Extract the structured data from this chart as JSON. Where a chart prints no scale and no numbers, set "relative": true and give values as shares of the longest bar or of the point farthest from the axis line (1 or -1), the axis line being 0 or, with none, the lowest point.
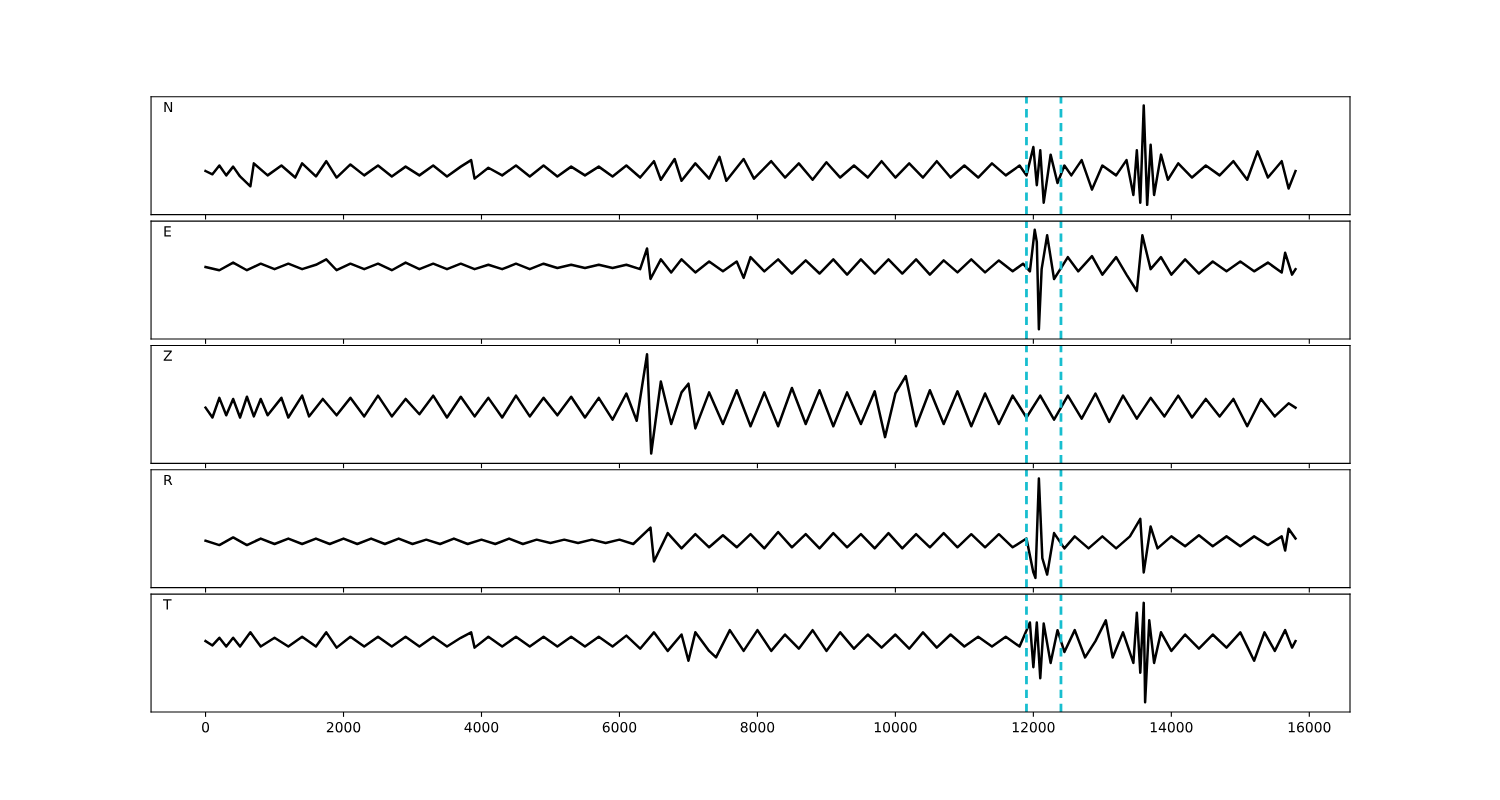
{
  "chart_data": [
    {
      "type": "line",
      "relative": true,
      "xlim": [
        -790,
        16590
      ],
      "xticks": [
        0,
        2000,
        4000,
        6000,
        8000,
        10000,
        12000,
        14000,
        16000
      ],
      "tick_labels": false,
      "grid": false,
      "annotations": [
        "N"
      ],
      "ref_lines": [
        {
          "axis": "x",
          "value": 11900,
          "color": "#17becf",
          "line_style": "dashed"
        },
        {
          "axis": "x",
          "value": 12400,
          "color": "#17becf",
          "line_style": "dashed"
        }
      ],
      "series": [
        {
          "color": "#000000",
          "x": [
            0,
            100,
            200,
            300,
            400,
            500,
            650,
            700,
            900,
            1100,
            1300,
            1400,
            1600,
            1750,
            1900,
            2100,
            2300,
            2500,
            2700,
            2900,
            3100,
            3300,
            3500,
            3700,
            3850,
            3900,
            4100,
            4300,
            4500,
            4700,
            4900,
            5100,
            5300,
            5500,
            5700,
            5900,
            6100,
            6300,
            6500,
            6600,
            6800,
            6900,
            7100,
            7300,
            7450,
            7550,
            7800,
            7950,
            8200,
            8400,
            8600,
            8800,
            9000,
            9200,
            9400,
            9600,
            9800,
            10000,
            10200,
            10400,
            10600,
            10800,
            11000,
            11200,
            11400,
            11600,
            11800,
            11900,
            12000,
            12050,
            12100,
            12150,
            12250,
            12350,
            12450,
            12550,
            12700,
            12850,
            13000,
            13200,
            13350,
            13450,
            13500,
            13550,
            13600,
            13650,
            13700,
            13750,
            13850,
            13950,
            14100,
            14300,
            14500,
            14700,
            14900,
            15100,
            15250,
            15400,
            15600,
            15700,
            15800
          ],
          "values": [
            0.4,
            0.37,
            0.45,
            0.36,
            0.44,
            0.35,
            0.26,
            0.47,
            0.36,
            0.45,
            0.34,
            0.47,
            0.35,
            0.49,
            0.34,
            0.46,
            0.36,
            0.45,
            0.35,
            0.44,
            0.36,
            0.45,
            0.35,
            0.44,
            0.5,
            0.33,
            0.43,
            0.36,
            0.45,
            0.35,
            0.45,
            0.35,
            0.44,
            0.36,
            0.44,
            0.35,
            0.45,
            0.34,
            0.49,
            0.32,
            0.51,
            0.31,
            0.47,
            0.33,
            0.53,
            0.31,
            0.51,
            0.33,
            0.49,
            0.34,
            0.47,
            0.32,
            0.48,
            0.34,
            0.45,
            0.34,
            0.49,
            0.34,
            0.47,
            0.34,
            0.49,
            0.34,
            0.45,
            0.34,
            0.47,
            0.36,
            0.45,
            0.36,
            0.62,
            0.27,
            0.59,
            0.11,
            0.55,
            0.29,
            0.45,
            0.36,
            0.5,
            0.23,
            0.45,
            0.36,
            0.5,
            0.18,
            0.59,
            0.11,
            1.0,
            0.09,
            0.64,
            0.18,
            0.55,
            0.32,
            0.47,
            0.34,
            0.45,
            0.36,
            0.49,
            0.32,
            0.58,
            0.34,
            0.49,
            0.24,
            0.4
          ]
        }
      ]
    },
    {
      "type": "line",
      "relative": true,
      "xlim": [
        -790,
        16590
      ],
      "xticks": [
        0,
        2000,
        4000,
        6000,
        8000,
        10000,
        12000,
        14000,
        16000
      ],
      "tick_labels": false,
      "grid": false,
      "annotations": [
        "E"
      ],
      "ref_lines": [
        {
          "axis": "x",
          "value": 11900,
          "color": "#17becf",
          "line_style": "dashed"
        },
        {
          "axis": "x",
          "value": 12400,
          "color": "#17becf",
          "line_style": "dashed"
        }
      ],
      "series": [
        {
          "color": "#000000",
          "x": [
            0,
            200,
            400,
            600,
            800,
            1000,
            1200,
            1400,
            1600,
            1750,
            1900,
            2100,
            2300,
            2500,
            2700,
            2900,
            3100,
            3300,
            3500,
            3700,
            3900,
            4100,
            4300,
            4500,
            4700,
            4900,
            5100,
            5300,
            5500,
            5700,
            5900,
            6100,
            6300,
            6400,
            6450,
            6600,
            6750,
            6900,
            7100,
            7300,
            7500,
            7700,
            7800,
            7900,
            8100,
            8300,
            8500,
            8700,
            8900,
            9100,
            9300,
            9500,
            9700,
            9900,
            10100,
            10300,
            10500,
            10700,
            10900,
            11100,
            11300,
            11500,
            11700,
            11850,
            11950,
            12020,
            12050,
            12080,
            12120,
            12200,
            12300,
            12400,
            12500,
            12650,
            12850,
            13000,
            13200,
            13350,
            13500,
            13580,
            13700,
            13850,
            14000,
            14200,
            14400,
            14600,
            14800,
            15000,
            15200,
            15400,
            15600,
            15650,
            15750,
            15800
          ],
          "values": [
            0.66,
            0.63,
            0.7,
            0.63,
            0.69,
            0.64,
            0.69,
            0.64,
            0.68,
            0.73,
            0.63,
            0.69,
            0.64,
            0.69,
            0.63,
            0.7,
            0.64,
            0.69,
            0.64,
            0.69,
            0.64,
            0.68,
            0.64,
            0.69,
            0.64,
            0.69,
            0.65,
            0.68,
            0.65,
            0.68,
            0.65,
            0.68,
            0.64,
            0.83,
            0.55,
            0.73,
            0.61,
            0.73,
            0.61,
            0.71,
            0.62,
            0.71,
            0.56,
            0.75,
            0.62,
            0.73,
            0.6,
            0.72,
            0.6,
            0.73,
            0.59,
            0.73,
            0.6,
            0.73,
            0.6,
            0.73,
            0.59,
            0.72,
            0.61,
            0.73,
            0.61,
            0.72,
            0.62,
            0.69,
            0.62,
            1.0,
            0.89,
            0.09,
            0.64,
            0.95,
            0.55,
            0.65,
            0.75,
            0.62,
            0.76,
            0.59,
            0.75,
            0.59,
            0.44,
            0.95,
            0.64,
            0.75,
            0.59,
            0.73,
            0.6,
            0.71,
            0.62,
            0.71,
            0.62,
            0.7,
            0.61,
            0.79,
            0.59,
            0.64
          ]
        }
      ]
    },
    {
      "type": "line",
      "relative": true,
      "xlim": [
        -790,
        16590
      ],
      "xticks": [
        0,
        2000,
        4000,
        6000,
        8000,
        10000,
        12000,
        14000,
        16000
      ],
      "tick_labels": false,
      "grid": false,
      "annotations": [
        "Z"
      ],
      "ref_lines": [
        {
          "axis": "x",
          "value": 11900,
          "color": "#17becf",
          "line_style": "dashed"
        },
        {
          "axis": "x",
          "value": 12400,
          "color": "#17becf",
          "line_style": "dashed"
        }
      ],
      "series": [
        {
          "color": "#000000",
          "x": [
            0,
            100,
            200,
            300,
            400,
            500,
            600,
            700,
            800,
            900,
            1100,
            1200,
            1400,
            1500,
            1700,
            1900,
            2100,
            2300,
            2500,
            2700,
            2900,
            3100,
            3300,
            3500,
            3700,
            3900,
            4100,
            4300,
            4500,
            4700,
            4900,
            5100,
            5300,
            5500,
            5700,
            5900,
            6100,
            6250,
            6400,
            6460,
            6600,
            6750,
            6900,
            7000,
            7100,
            7300,
            7500,
            7700,
            7900,
            8100,
            8300,
            8500,
            8700,
            8900,
            9100,
            9300,
            9500,
            9700,
            9850,
            10000,
            10150,
            10300,
            10500,
            10700,
            10900,
            11100,
            11300,
            11500,
            11700,
            11900,
            12100,
            12300,
            12500,
            12700,
            12900,
            13100,
            13300,
            13500,
            13700,
            13900,
            14100,
            14300,
            14500,
            14700,
            14900,
            15100,
            15300,
            15500,
            15700,
            15800
          ],
          "values": [
            0.51,
            0.42,
            0.6,
            0.44,
            0.59,
            0.42,
            0.61,
            0.43,
            0.59,
            0.44,
            0.6,
            0.42,
            0.62,
            0.43,
            0.59,
            0.44,
            0.6,
            0.43,
            0.62,
            0.43,
            0.59,
            0.45,
            0.62,
            0.42,
            0.61,
            0.43,
            0.6,
            0.42,
            0.62,
            0.43,
            0.6,
            0.44,
            0.61,
            0.42,
            0.6,
            0.4,
            0.64,
            0.39,
            1.0,
            0.09,
            0.75,
            0.36,
            0.65,
            0.73,
            0.32,
            0.65,
            0.36,
            0.67,
            0.34,
            0.65,
            0.34,
            0.69,
            0.36,
            0.67,
            0.34,
            0.65,
            0.36,
            0.66,
            0.24,
            0.64,
            0.8,
            0.34,
            0.67,
            0.36,
            0.66,
            0.34,
            0.64,
            0.36,
            0.62,
            0.42,
            0.62,
            0.4,
            0.62,
            0.41,
            0.64,
            0.38,
            0.62,
            0.41,
            0.6,
            0.43,
            0.62,
            0.42,
            0.59,
            0.43,
            0.59,
            0.34,
            0.59,
            0.43,
            0.55,
            0.51
          ]
        }
      ]
    },
    {
      "type": "line",
      "relative": true,
      "xlim": [
        -790,
        16590
      ],
      "xticks": [
        0,
        2000,
        4000,
        6000,
        8000,
        10000,
        12000,
        14000,
        16000
      ],
      "tick_labels": false,
      "grid": false,
      "annotations": [
        "R"
      ],
      "ref_lines": [
        {
          "axis": "x",
          "value": 11900,
          "color": "#17becf",
          "line_style": "dashed"
        },
        {
          "axis": "x",
          "value": 12400,
          "color": "#17becf",
          "line_style": "dashed"
        }
      ],
      "series": [
        {
          "color": "#000000",
          "x": [
            0,
            200,
            400,
            600,
            800,
            1000,
            1200,
            1400,
            1600,
            1800,
            2000,
            2200,
            2400,
            2600,
            2800,
            3000,
            3200,
            3400,
            3600,
            3800,
            4000,
            4200,
            4400,
            4600,
            4800,
            5000,
            5200,
            5400,
            5600,
            5800,
            6000,
            6200,
            6450,
            6500,
            6700,
            6900,
            7100,
            7300,
            7500,
            7700,
            7900,
            8100,
            8300,
            8500,
            8700,
            8900,
            9100,
            9300,
            9500,
            9700,
            9900,
            10100,
            10300,
            10500,
            10700,
            10900,
            11100,
            11300,
            11500,
            11700,
            11900,
            12000,
            12030,
            12080,
            12130,
            12200,
            12300,
            12450,
            12600,
            12800,
            13000,
            13200,
            13400,
            13550,
            13600,
            13700,
            13800,
            14000,
            14200,
            14400,
            14600,
            14800,
            15000,
            15200,
            15400,
            15600,
            15650,
            15700,
            15800
          ],
          "values": [
            0.43,
            0.39,
            0.46,
            0.39,
            0.45,
            0.4,
            0.45,
            0.4,
            0.45,
            0.4,
            0.45,
            0.4,
            0.45,
            0.4,
            0.45,
            0.4,
            0.44,
            0.4,
            0.45,
            0.4,
            0.44,
            0.4,
            0.45,
            0.4,
            0.44,
            0.41,
            0.44,
            0.41,
            0.44,
            0.41,
            0.44,
            0.4,
            0.55,
            0.24,
            0.5,
            0.36,
            0.49,
            0.37,
            0.48,
            0.37,
            0.49,
            0.36,
            0.51,
            0.37,
            0.49,
            0.36,
            0.5,
            0.37,
            0.49,
            0.36,
            0.5,
            0.36,
            0.49,
            0.37,
            0.5,
            0.37,
            0.49,
            0.37,
            0.49,
            0.37,
            0.45,
            0.14,
            0.09,
            1.0,
            0.27,
            0.12,
            0.5,
            0.36,
            0.47,
            0.36,
            0.47,
            0.36,
            0.47,
            0.63,
            0.14,
            0.56,
            0.36,
            0.47,
            0.38,
            0.48,
            0.38,
            0.47,
            0.38,
            0.47,
            0.39,
            0.47,
            0.34,
            0.54,
            0.45
          ]
        }
      ]
    },
    {
      "type": "line",
      "relative": true,
      "xlim": [
        -790,
        16590
      ],
      "xticks": [
        0,
        2000,
        4000,
        6000,
        8000,
        10000,
        12000,
        14000,
        16000
      ],
      "tick_labels": "x",
      "grid": false,
      "annotations": [
        "T"
      ],
      "ref_lines": [
        {
          "axis": "x",
          "value": 11900,
          "color": "#17becf",
          "line_style": "dashed"
        },
        {
          "axis": "x",
          "value": 12400,
          "color": "#17becf",
          "line_style": "dashed"
        }
      ],
      "series": [
        {
          "color": "#000000",
          "x": [
            0,
            100,
            200,
            300,
            400,
            500,
            650,
            800,
            1000,
            1200,
            1400,
            1600,
            1750,
            1900,
            2100,
            2300,
            2500,
            2700,
            2900,
            3100,
            3300,
            3500,
            3700,
            3850,
            3900,
            4100,
            4300,
            4500,
            4700,
            4900,
            5100,
            5300,
            5500,
            5700,
            5900,
            6100,
            6300,
            6500,
            6700,
            6900,
            7000,
            7100,
            7300,
            7400,
            7600,
            7800,
            8000,
            8200,
            8400,
            8600,
            8800,
            9000,
            9200,
            9400,
            9600,
            9800,
            10000,
            10200,
            10400,
            10600,
            10800,
            11000,
            11200,
            11400,
            11600,
            11800,
            11950,
            12000,
            12050,
            12100,
            12150,
            12250,
            12350,
            12450,
            12600,
            12750,
            12900,
            13050,
            13150,
            13300,
            13450,
            13500,
            13550,
            13600,
            13620,
            13680,
            13750,
            13850,
            14000,
            14200,
            14400,
            14600,
            14800,
            15000,
            15200,
            15350,
            15500,
            15650,
            15750,
            15800
          ],
          "values": [
            0.65,
            0.61,
            0.68,
            0.6,
            0.68,
            0.6,
            0.73,
            0.6,
            0.68,
            0.6,
            0.69,
            0.6,
            0.73,
            0.59,
            0.69,
            0.6,
            0.69,
            0.6,
            0.69,
            0.6,
            0.69,
            0.6,
            0.68,
            0.73,
            0.59,
            0.69,
            0.6,
            0.69,
            0.6,
            0.69,
            0.6,
            0.69,
            0.6,
            0.69,
            0.6,
            0.7,
            0.58,
            0.73,
            0.56,
            0.71,
            0.47,
            0.73,
            0.56,
            0.5,
            0.75,
            0.56,
            0.75,
            0.56,
            0.71,
            0.58,
            0.75,
            0.56,
            0.73,
            0.58,
            0.71,
            0.59,
            0.71,
            0.58,
            0.73,
            0.59,
            0.71,
            0.6,
            0.69,
            0.6,
            0.69,
            0.6,
            0.82,
            0.41,
            0.82,
            0.31,
            0.81,
            0.45,
            0.75,
            0.55,
            0.75,
            0.5,
            0.65,
            0.84,
            0.5,
            0.73,
            0.45,
            0.91,
            0.36,
            1.0,
            0.09,
            0.84,
            0.45,
            0.73,
            0.56,
            0.71,
            0.58,
            0.71,
            0.59,
            0.73,
            0.47,
            0.73,
            0.56,
            0.75,
            0.59,
            0.65
          ]
        }
      ]
    }
  ]
}
